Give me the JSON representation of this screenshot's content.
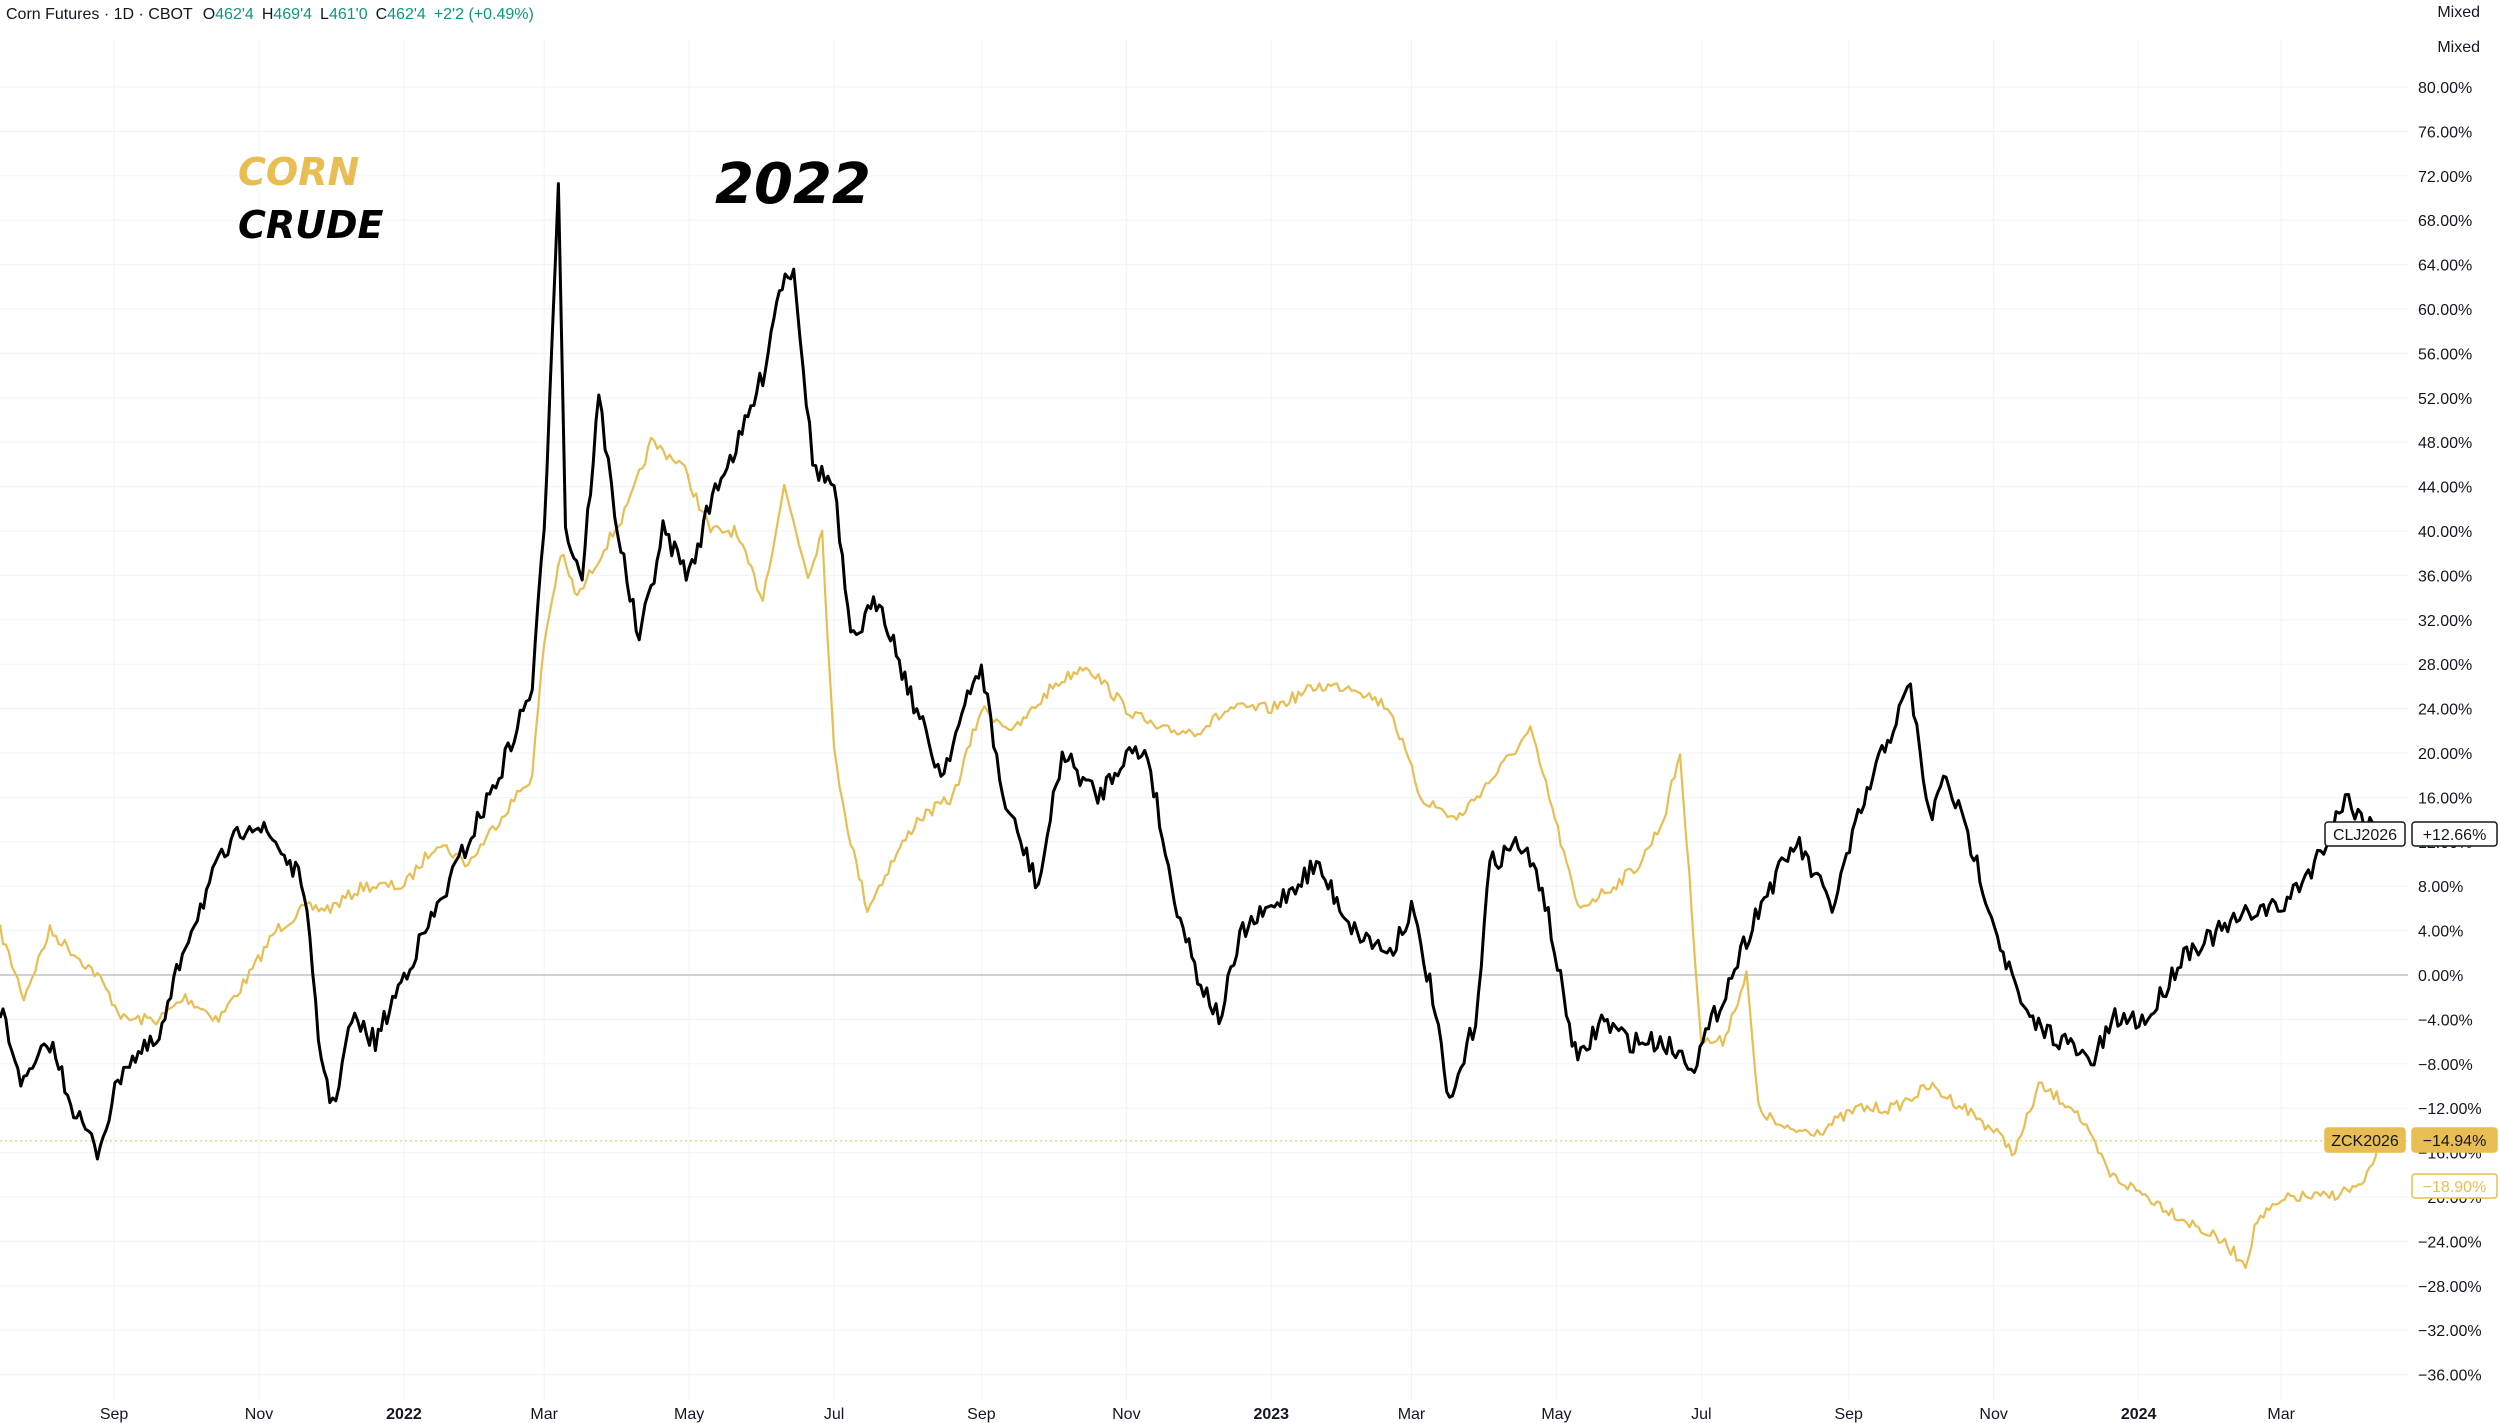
{
  "header": {
    "symbol": "Corn Futures · 1D · CBOT",
    "open_label": "O",
    "open": "462'4",
    "high_label": "H",
    "high": "469'4",
    "low_label": "L",
    "low": "461'0",
    "close_label": "C",
    "close": "462'4",
    "change": "+2'2 (+0.49%)"
  },
  "scale_modes": [
    "Mixed",
    "Mixed"
  ],
  "colors": {
    "corn": "#E8BE52",
    "crude": "#000000",
    "grid": "#F0F3FA",
    "axis_text": "#131722",
    "header_values": "#089981"
  },
  "chart_data": {
    "type": "line",
    "title": "",
    "annotations": [
      {
        "text": "CORN",
        "color": "#E8BE52"
      },
      {
        "text": "CRUDE",
        "color": "#000000"
      },
      {
        "text": "2022",
        "color": "#000000"
      }
    ],
    "x_ticks": [
      {
        "label": "Sep",
        "date": "2021-09-01",
        "bold": false
      },
      {
        "label": "Nov",
        "date": "2021-11-01",
        "bold": false
      },
      {
        "label": "2022",
        "date": "2022-01-01",
        "bold": true
      },
      {
        "label": "Mar",
        "date": "2022-03-01",
        "bold": false
      },
      {
        "label": "May",
        "date": "2022-05-01",
        "bold": false
      },
      {
        "label": "Jul",
        "date": "2022-07-01",
        "bold": false
      },
      {
        "label": "Sep",
        "date": "2022-09-01",
        "bold": false
      },
      {
        "label": "Nov",
        "date": "2022-11-01",
        "bold": false
      },
      {
        "label": "2023",
        "date": "2023-01-01",
        "bold": true
      },
      {
        "label": "Mar",
        "date": "2023-03-01",
        "bold": false
      },
      {
        "label": "May",
        "date": "2023-05-01",
        "bold": false
      },
      {
        "label": "Jul",
        "date": "2023-07-01",
        "bold": false
      },
      {
        "label": "Sep",
        "date": "2023-09-01",
        "bold": false
      },
      {
        "label": "Nov",
        "date": "2023-11-01",
        "bold": false
      },
      {
        "label": "2024",
        "date": "2024-01-01",
        "bold": true
      },
      {
        "label": "Mar",
        "date": "2024-03-01",
        "bold": false
      }
    ],
    "x_range": [
      "2021-07-15",
      "2024-04-20"
    ],
    "y_unit": "%",
    "ylim": [
      -38,
      82
    ],
    "y_ticks": [
      "80.00%",
      "76.00%",
      "72.00%",
      "68.00%",
      "64.00%",
      "60.00%",
      "56.00%",
      "52.00%",
      "48.00%",
      "44.00%",
      "40.00%",
      "36.00%",
      "32.00%",
      "28.00%",
      "24.00%",
      "20.00%",
      "16.00%",
      "12.00%",
      "8.00%",
      "4.00%",
      "0.00%",
      "−4.00%",
      "−8.00%",
      "−12.00%",
      "−16.00%",
      "−20.00%",
      "−24.00%",
      "−28.00%",
      "−32.00%",
      "−36.00%"
    ],
    "y_tick_values": [
      80,
      76,
      72,
      68,
      64,
      60,
      56,
      52,
      48,
      44,
      40,
      36,
      32,
      28,
      24,
      20,
      16,
      12,
      8,
      4,
      0,
      -4,
      -8,
      -12,
      -16,
      -20,
      -24,
      -28,
      -32,
      -36
    ],
    "grid": true,
    "series": [
      {
        "name": "CLJ2026",
        "color": "#000000",
        "last_value_label": "+12.66%",
        "last_value": 12.66,
        "points": [
          [
            "2021-07-15",
            -3
          ],
          [
            "2021-07-25",
            -10
          ],
          [
            "2021-08-05",
            -6
          ],
          [
            "2021-08-15",
            -12
          ],
          [
            "2021-08-25",
            -16
          ],
          [
            "2021-09-05",
            -8
          ],
          [
            "2021-09-20",
            -6
          ],
          [
            "2021-10-01",
            3
          ],
          [
            "2021-10-15",
            10
          ],
          [
            "2021-10-28",
            14
          ],
          [
            "2021-11-08",
            12
          ],
          [
            "2021-11-20",
            8
          ],
          [
            "2021-11-26",
            -6
          ],
          [
            "2021-12-02",
            -12
          ],
          [
            "2021-12-10",
            -4
          ],
          [
            "2021-12-20",
            -6
          ],
          [
            "2022-01-01",
            0
          ],
          [
            "2022-01-15",
            6
          ],
          [
            "2022-01-28",
            12
          ],
          [
            "2022-02-10",
            18
          ],
          [
            "2022-02-24",
            26
          ],
          [
            "2022-03-01",
            40
          ],
          [
            "2022-03-07",
            72
          ],
          [
            "2022-03-10",
            40
          ],
          [
            "2022-03-17",
            36
          ],
          [
            "2022-03-24",
            52
          ],
          [
            "2022-04-01",
            40
          ],
          [
            "2022-04-10",
            30
          ],
          [
            "2022-04-20",
            40
          ],
          [
            "2022-05-01",
            36
          ],
          [
            "2022-05-12",
            44
          ],
          [
            "2022-05-22",
            48
          ],
          [
            "2022-06-01",
            54
          ],
          [
            "2022-06-08",
            62
          ],
          [
            "2022-06-14",
            64
          ],
          [
            "2022-06-22",
            46
          ],
          [
            "2022-07-01",
            44
          ],
          [
            "2022-07-08",
            30
          ],
          [
            "2022-07-20",
            34
          ],
          [
            "2022-08-01",
            26
          ],
          [
            "2022-08-15",
            18
          ],
          [
            "2022-08-25",
            24
          ],
          [
            "2022-09-01",
            28
          ],
          [
            "2022-09-10",
            16
          ],
          [
            "2022-09-25",
            8
          ],
          [
            "2022-10-05",
            20
          ],
          [
            "2022-10-20",
            16
          ],
          [
            "2022-11-01",
            20
          ],
          [
            "2022-11-10",
            20
          ],
          [
            "2022-11-20",
            8
          ],
          [
            "2022-12-01",
            0
          ],
          [
            "2022-12-10",
            -4
          ],
          [
            "2022-12-20",
            4
          ],
          [
            "2023-01-01",
            6
          ],
          [
            "2023-01-20",
            10
          ],
          [
            "2023-02-05",
            4
          ],
          [
            "2023-02-20",
            2
          ],
          [
            "2023-03-01",
            6
          ],
          [
            "2023-03-10",
            -2
          ],
          [
            "2023-03-17",
            -12
          ],
          [
            "2023-03-28",
            -4
          ],
          [
            "2023-04-03",
            10
          ],
          [
            "2023-04-15",
            12
          ],
          [
            "2023-04-25",
            8
          ],
          [
            "2023-05-04",
            -2
          ],
          [
            "2023-05-10",
            -8
          ],
          [
            "2023-05-20",
            -4
          ],
          [
            "2023-06-01",
            -6
          ],
          [
            "2023-06-15",
            -6
          ],
          [
            "2023-06-28",
            -8
          ],
          [
            "2023-07-10",
            -2
          ],
          [
            "2023-07-25",
            6
          ],
          [
            "2023-08-10",
            12
          ],
          [
            "2023-08-25",
            6
          ],
          [
            "2023-09-05",
            14
          ],
          [
            "2023-09-15",
            20
          ],
          [
            "2023-09-27",
            26
          ],
          [
            "2023-10-05",
            14
          ],
          [
            "2023-10-12",
            18
          ],
          [
            "2023-10-25",
            10
          ],
          [
            "2023-11-05",
            2
          ],
          [
            "2023-11-15",
            -4
          ],
          [
            "2023-12-01",
            -6
          ],
          [
            "2023-12-12",
            -8
          ],
          [
            "2023-12-22",
            -4
          ],
          [
            "2024-01-05",
            -4
          ],
          [
            "2024-01-20",
            2
          ],
          [
            "2024-02-05",
            4
          ],
          [
            "2024-02-20",
            6
          ],
          [
            "2024-03-01",
            6
          ],
          [
            "2024-03-15",
            10
          ],
          [
            "2024-03-28",
            16
          ],
          [
            "2024-04-05",
            14
          ],
          [
            "2024-04-12",
            12.66
          ]
        ]
      },
      {
        "name": "ZCK2026",
        "color": "#E8BE52",
        "last_value_label": "−14.94%",
        "last_value": -14.94,
        "points": [
          [
            "2021-07-15",
            4
          ],
          [
            "2021-07-25",
            -2
          ],
          [
            "2021-08-05",
            4
          ],
          [
            "2021-08-15",
            2
          ],
          [
            "2021-08-25",
            0
          ],
          [
            "2021-09-05",
            -4
          ],
          [
            "2021-09-20",
            -4
          ],
          [
            "2021-10-01",
            -2
          ],
          [
            "2021-10-15",
            -4
          ],
          [
            "2021-10-28",
            0
          ],
          [
            "2021-11-08",
            4
          ],
          [
            "2021-11-20",
            6
          ],
          [
            "2021-12-01",
            6
          ],
          [
            "2021-12-15",
            8
          ],
          [
            "2022-01-01",
            8
          ],
          [
            "2022-01-15",
            12
          ],
          [
            "2022-01-28",
            10
          ],
          [
            "2022-02-10",
            14
          ],
          [
            "2022-02-24",
            18
          ],
          [
            "2022-03-01",
            30
          ],
          [
            "2022-03-08",
            38
          ],
          [
            "2022-03-15",
            34
          ],
          [
            "2022-03-25",
            38
          ],
          [
            "2022-04-05",
            42
          ],
          [
            "2022-04-15",
            48
          ],
          [
            "2022-04-28",
            46
          ],
          [
            "2022-05-10",
            40
          ],
          [
            "2022-05-20",
            40
          ],
          [
            "2022-06-01",
            34
          ],
          [
            "2022-06-10",
            44
          ],
          [
            "2022-06-20",
            36
          ],
          [
            "2022-06-26",
            40
          ],
          [
            "2022-07-01",
            20
          ],
          [
            "2022-07-08",
            12
          ],
          [
            "2022-07-15",
            6
          ],
          [
            "2022-07-25",
            10
          ],
          [
            "2022-08-05",
            14
          ],
          [
            "2022-08-20",
            16
          ],
          [
            "2022-09-01",
            24
          ],
          [
            "2022-09-15",
            22
          ],
          [
            "2022-10-01",
            26
          ],
          [
            "2022-10-15",
            28
          ],
          [
            "2022-11-01",
            24
          ],
          [
            "2022-11-15",
            22
          ],
          [
            "2022-12-01",
            22
          ],
          [
            "2022-12-15",
            24
          ],
          [
            "2023-01-01",
            24
          ],
          [
            "2023-01-20",
            26
          ],
          [
            "2023-02-05",
            26
          ],
          [
            "2023-02-20",
            24
          ],
          [
            "2023-03-05",
            16
          ],
          [
            "2023-03-20",
            14
          ],
          [
            "2023-04-05",
            18
          ],
          [
            "2023-04-20",
            22
          ],
          [
            "2023-04-28",
            16
          ],
          [
            "2023-05-10",
            6
          ],
          [
            "2023-05-25",
            8
          ],
          [
            "2023-06-05",
            10
          ],
          [
            "2023-06-15",
            14
          ],
          [
            "2023-06-22",
            20
          ],
          [
            "2023-07-01",
            -6
          ],
          [
            "2023-07-10",
            -6
          ],
          [
            "2023-07-20",
            0
          ],
          [
            "2023-07-25",
            -12
          ],
          [
            "2023-08-05",
            -14
          ],
          [
            "2023-08-20",
            -14
          ],
          [
            "2023-09-05",
            -12
          ],
          [
            "2023-09-20",
            -12
          ],
          [
            "2023-10-05",
            -10
          ],
          [
            "2023-10-20",
            -12
          ],
          [
            "2023-11-01",
            -14
          ],
          [
            "2023-11-10",
            -16
          ],
          [
            "2023-11-20",
            -10
          ],
          [
            "2023-12-05",
            -12
          ],
          [
            "2023-12-20",
            -18
          ],
          [
            "2024-01-05",
            -20
          ],
          [
            "2024-01-20",
            -22
          ],
          [
            "2024-02-05",
            -24
          ],
          [
            "2024-02-15",
            -26
          ],
          [
            "2024-02-20",
            -22
          ],
          [
            "2024-03-05",
            -20
          ],
          [
            "2024-03-20",
            -20
          ],
          [
            "2024-04-05",
            -18.9
          ],
          [
            "2024-04-12",
            -14.94
          ]
        ]
      },
      {
        "name": "",
        "color": "#E8BE52",
        "last_value_label": "−18.90%",
        "last_value": -18.9,
        "points": []
      }
    ]
  }
}
